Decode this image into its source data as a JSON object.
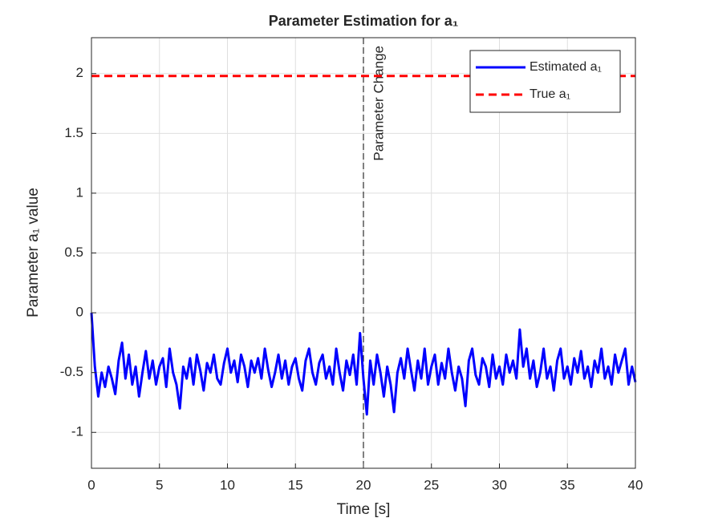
{
  "chart_data": {
    "type": "line",
    "title": "Parameter Estimation for a₁",
    "x_label": "Time [s]",
    "y_label": "Parameter a₁  value",
    "xlim": [
      0,
      40
    ],
    "ylim": [
      -1.3,
      2.3
    ],
    "xticks": [
      0,
      5,
      10,
      15,
      20,
      25,
      30,
      35,
      40
    ],
    "yticks": [
      -1,
      -0.5,
      0,
      0.5,
      1,
      1.5,
      2
    ],
    "grid": true,
    "legend": "top-right",
    "vline": {
      "x": 20,
      "label": "Parameter Change",
      "color": "#000000"
    },
    "series": [
      {
        "name": "Estimated a₁",
        "color": "#0000ff",
        "style": "solid",
        "x": [
          0,
          0.25,
          0.5,
          0.75,
          1,
          1.25,
          1.5,
          1.75,
          2,
          2.25,
          2.5,
          2.75,
          3,
          3.25,
          3.5,
          3.75,
          4,
          4.25,
          4.5,
          4.75,
          5,
          5.25,
          5.5,
          5.75,
          6,
          6.25,
          6.5,
          6.75,
          7,
          7.25,
          7.5,
          7.75,
          8,
          8.25,
          8.5,
          8.75,
          9,
          9.25,
          9.5,
          9.75,
          10,
          10.25,
          10.5,
          10.75,
          11,
          11.25,
          11.5,
          11.75,
          12,
          12.25,
          12.5,
          12.75,
          13,
          13.25,
          13.5,
          13.75,
          14,
          14.25,
          14.5,
          14.75,
          15,
          15.25,
          15.5,
          15.75,
          16,
          16.25,
          16.5,
          16.75,
          17,
          17.25,
          17.5,
          17.75,
          18,
          18.25,
          18.5,
          18.75,
          19,
          19.25,
          19.5,
          19.75,
          20,
          20.25,
          20.5,
          20.75,
          21,
          21.25,
          21.5,
          21.75,
          22,
          22.25,
          22.5,
          22.75,
          23,
          23.25,
          23.5,
          23.75,
          24,
          24.25,
          24.5,
          24.75,
          25,
          25.25,
          25.5,
          25.75,
          26,
          26.25,
          26.5,
          26.75,
          27,
          27.25,
          27.5,
          27.75,
          28,
          28.25,
          28.5,
          28.75,
          29,
          29.25,
          29.5,
          29.75,
          30,
          30.25,
          30.5,
          30.75,
          31,
          31.25,
          31.5,
          31.75,
          32,
          32.25,
          32.5,
          32.75,
          33,
          33.25,
          33.5,
          33.75,
          34,
          34.25,
          34.5,
          34.75,
          35,
          35.25,
          35.5,
          35.75,
          36,
          36.25,
          36.5,
          36.75,
          37,
          37.25,
          37.5,
          37.75,
          38,
          38.25,
          38.5,
          38.75,
          39,
          39.25,
          39.5,
          39.75,
          40
        ],
        "values": [
          0,
          -0.45,
          -0.7,
          -0.5,
          -0.62,
          -0.45,
          -0.55,
          -0.68,
          -0.4,
          -0.25,
          -0.55,
          -0.35,
          -0.6,
          -0.45,
          -0.7,
          -0.5,
          -0.32,
          -0.55,
          -0.4,
          -0.6,
          -0.45,
          -0.38,
          -0.62,
          -0.3,
          -0.5,
          -0.6,
          -0.8,
          -0.45,
          -0.55,
          -0.38,
          -0.6,
          -0.35,
          -0.48,
          -0.65,
          -0.42,
          -0.5,
          -0.35,
          -0.55,
          -0.6,
          -0.42,
          -0.3,
          -0.5,
          -0.4,
          -0.58,
          -0.35,
          -0.45,
          -0.62,
          -0.4,
          -0.5,
          -0.38,
          -0.55,
          -0.3,
          -0.48,
          -0.62,
          -0.5,
          -0.35,
          -0.55,
          -0.4,
          -0.6,
          -0.45,
          -0.38,
          -0.55,
          -0.65,
          -0.4,
          -0.3,
          -0.5,
          -0.6,
          -0.42,
          -0.35,
          -0.55,
          -0.45,
          -0.6,
          -0.3,
          -0.5,
          -0.65,
          -0.4,
          -0.52,
          -0.35,
          -0.6,
          -0.17,
          -0.55,
          -0.85,
          -0.4,
          -0.6,
          -0.35,
          -0.5,
          -0.7,
          -0.45,
          -0.6,
          -0.83,
          -0.5,
          -0.38,
          -0.55,
          -0.3,
          -0.48,
          -0.65,
          -0.4,
          -0.55,
          -0.3,
          -0.6,
          -0.45,
          -0.35,
          -0.6,
          -0.42,
          -0.55,
          -0.3,
          -0.5,
          -0.65,
          -0.45,
          -0.55,
          -0.78,
          -0.4,
          -0.3,
          -0.52,
          -0.6,
          -0.38,
          -0.45,
          -0.62,
          -0.35,
          -0.55,
          -0.45,
          -0.6,
          -0.35,
          -0.5,
          -0.4,
          -0.55,
          -0.14,
          -0.45,
          -0.3,
          -0.55,
          -0.4,
          -0.62,
          -0.5,
          -0.3,
          -0.55,
          -0.45,
          -0.65,
          -0.4,
          -0.3,
          -0.55,
          -0.45,
          -0.6,
          -0.38,
          -0.5,
          -0.32,
          -0.55,
          -0.45,
          -0.62,
          -0.4,
          -0.5,
          -0.3,
          -0.55,
          -0.45,
          -0.6,
          -0.35,
          -0.5,
          -0.4,
          -0.3,
          -0.6,
          -0.45,
          -0.58
        ]
      },
      {
        "name": "True a₁",
        "color": "#ff0000",
        "style": "dashed",
        "x": [
          0,
          40
        ],
        "values": [
          1.98,
          1.98
        ]
      }
    ]
  }
}
